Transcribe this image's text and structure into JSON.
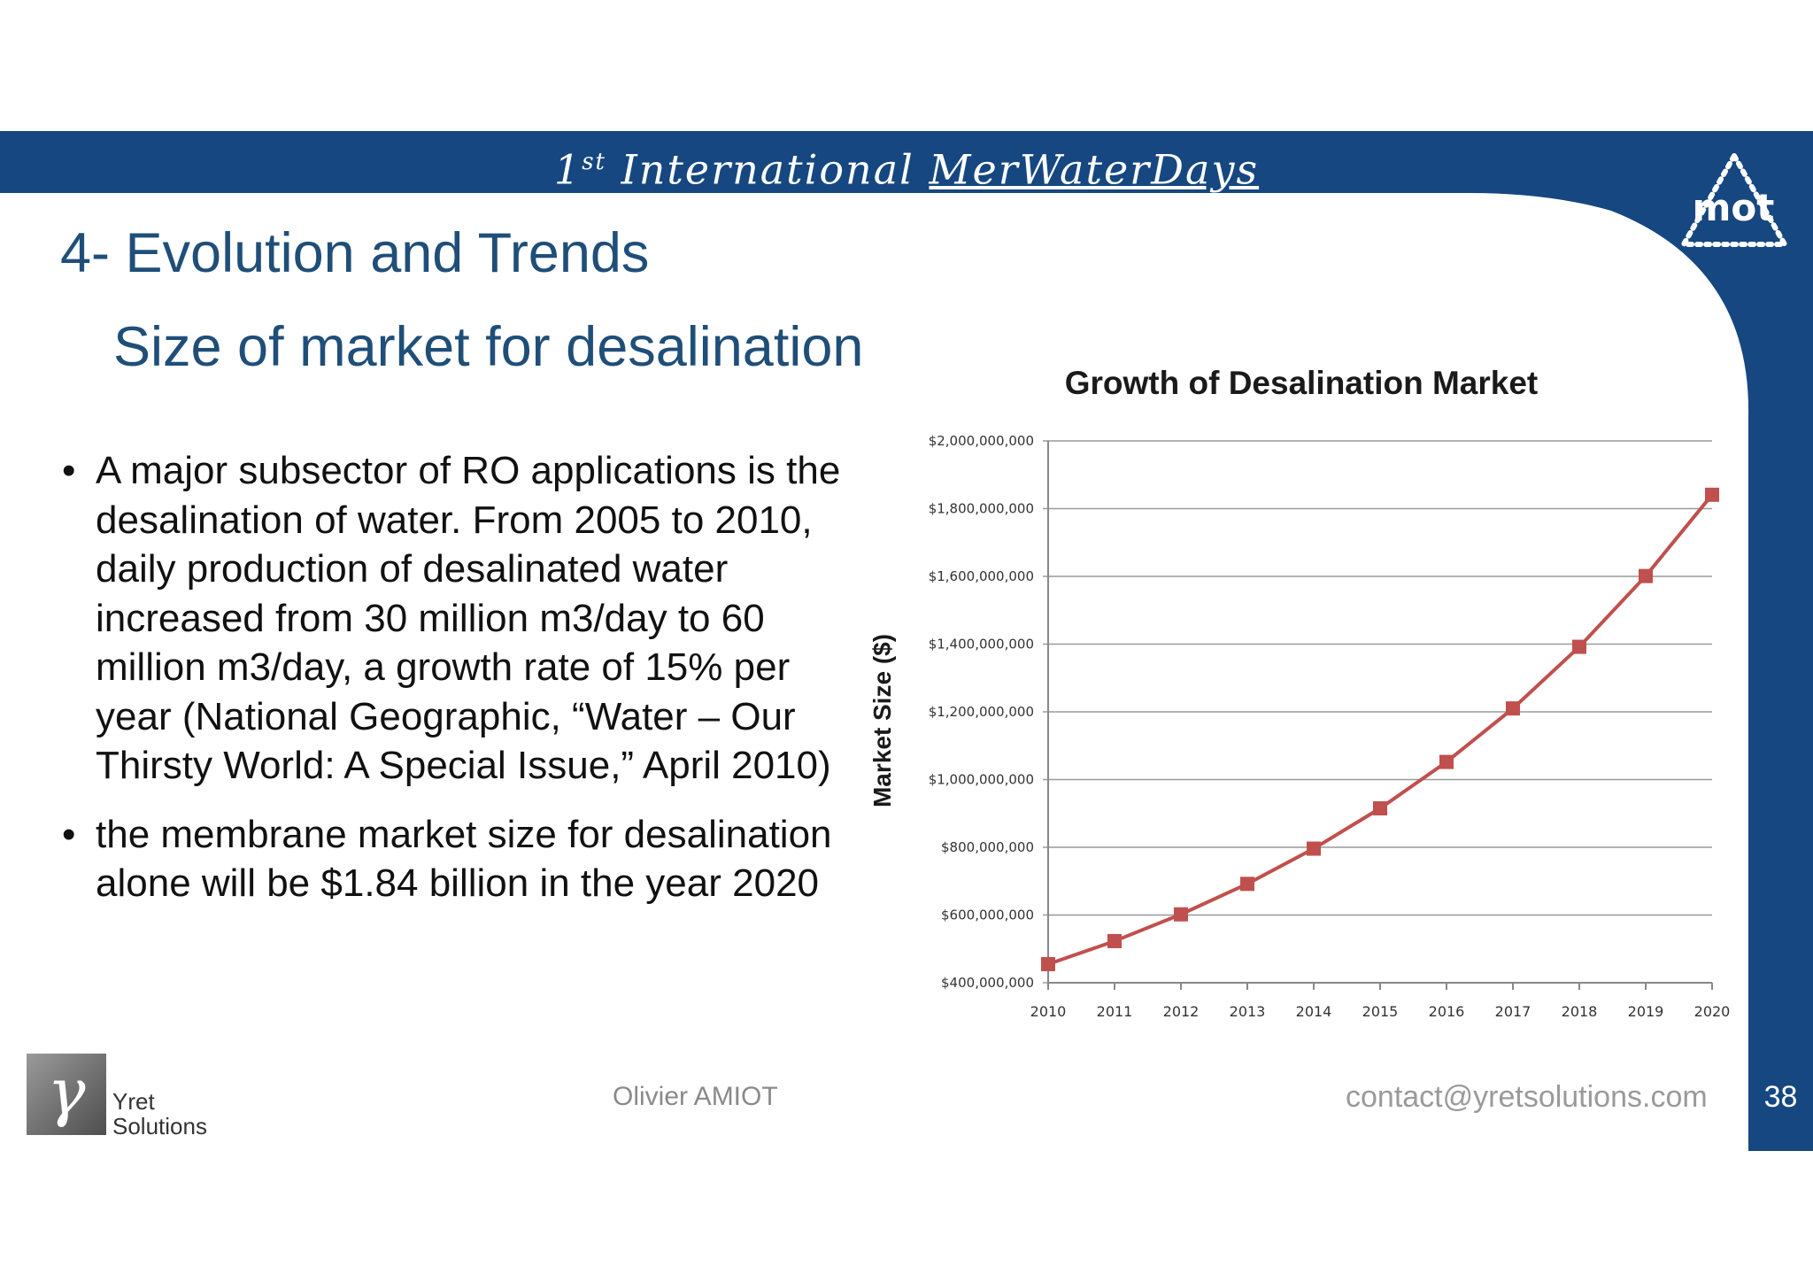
{
  "header": {
    "banner_ordinal": "1",
    "banner_sup": "st",
    "banner_word": "International",
    "banner_event": "MerWaterDays",
    "logo_text": "mot"
  },
  "slide": {
    "title": "4- Evolution and Trends",
    "subtitle": "Size of market for desalination",
    "bullets": [
      "A major subsector of RO applications is the desalination of water. From 2005 to 2010, daily production of desalinated water increased from 30 million m3/day to 60 million m3/day, a growth rate of 15% per year (National Geographic, “Water – Our Thirsty World: A Special Issue,” April 2010)",
      " the membrane market size for desalination alone will be $1.84 billion in the year 2020"
    ],
    "bullet_symbol": "•"
  },
  "footer": {
    "logo_letter": "γ",
    "company_line1": "Yret",
    "company_line2": "Solutions",
    "author": "Olivier AMIOT",
    "contact": "contact@yretsolutions.com",
    "page_number": "38"
  },
  "colors": {
    "brand_blue": "#164780",
    "title_blue": "#1f4e79",
    "series_line": "#c0504d",
    "series_marker": "#c0504d"
  },
  "chart_data": {
    "type": "line",
    "title": "Growth of Desalination Market",
    "xlabel": "",
    "ylabel": "Market Size ($)",
    "x": [
      "2010",
      "2011",
      "2012",
      "2013",
      "2014",
      "2015",
      "2016",
      "2017",
      "2018",
      "2019",
      "2020"
    ],
    "series": [
      {
        "values": [
          455000000,
          523000000,
          602000000,
          692000000,
          796000000,
          915000000,
          1052000000,
          1210000000,
          1392000000,
          1601000000,
          1841000000
        ]
      }
    ],
    "ylim": [
      400000000,
      2000000000
    ],
    "y_ticks": [
      400000000,
      600000000,
      800000000,
      1000000000,
      1200000000,
      1400000000,
      1600000000,
      1800000000,
      2000000000
    ],
    "y_tick_labels": [
      "$400,000,000",
      "$600,000,000",
      "$800,000,000",
      "$1,000,000,000",
      "$1,200,000,000",
      "$1,400,000,000",
      "$1,600,000,000",
      "$1,800,000,000",
      "$2,000,000,000"
    ],
    "grid": true,
    "legend": "none"
  }
}
